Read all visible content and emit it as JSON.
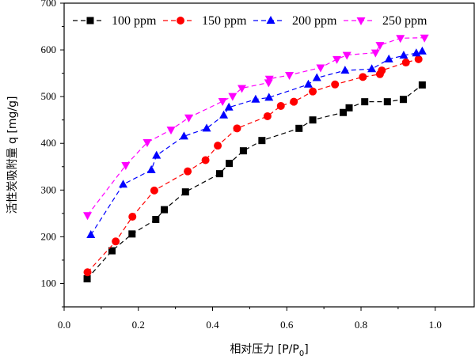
{
  "chart_data": {
    "type": "line",
    "title": "",
    "xlabel": "相对压力 [P/P",
    "xlabel_sub": "0",
    "xlabel_end": "]",
    "ylabel": "活性炭吸附量 q [mg/g]",
    "xlim": [
      0,
      1.105
    ],
    "ylim": [
      50,
      700
    ],
    "xticks": [
      "0.0",
      "0.2",
      "0.4",
      "0.6",
      "0.8",
      "1.0"
    ],
    "xtick_values": [
      0,
      0.2,
      0.4,
      0.6,
      0.8,
      1.0
    ],
    "yticks": [
      "100",
      "200",
      "300",
      "400",
      "500",
      "600",
      "700"
    ],
    "ytick_values": [
      100,
      200,
      300,
      400,
      500,
      600,
      700
    ],
    "grid": false,
    "legend_position": "top",
    "series": [
      {
        "name": "100 ppm",
        "color": "#000000",
        "marker": "square",
        "x": [
          0.062,
          0.129,
          0.183,
          0.247,
          0.27,
          0.327,
          0.419,
          0.445,
          0.483,
          0.533,
          0.633,
          0.67,
          0.752,
          0.768,
          0.81,
          0.871,
          0.914,
          0.965
        ],
        "y": [
          110,
          170,
          206,
          237,
          258,
          296,
          335,
          357,
          384,
          406,
          432,
          450,
          466,
          476,
          489,
          489,
          494,
          525
        ]
      },
      {
        "name": "150 ppm",
        "color": "#ff0000",
        "marker": "circle",
        "x": [
          0.063,
          0.139,
          0.184,
          0.243,
          0.333,
          0.381,
          0.414,
          0.466,
          0.548,
          0.584,
          0.619,
          0.67,
          0.73,
          0.805,
          0.851,
          0.856,
          0.921,
          0.955
        ],
        "y": [
          124,
          190,
          243,
          299,
          340,
          364,
          395,
          432,
          458,
          480,
          489,
          511,
          526,
          542,
          548,
          556,
          573,
          580
        ]
      },
      {
        "name": "200 ppm",
        "color": "#0000ff",
        "marker": "triangle-up",
        "x": [
          0.072,
          0.159,
          0.235,
          0.249,
          0.323,
          0.384,
          0.43,
          0.444,
          0.516,
          0.552,
          0.658,
          0.681,
          0.757,
          0.829,
          0.875,
          0.915,
          0.949,
          0.965
        ],
        "y": [
          204,
          312,
          343,
          374,
          415,
          432,
          460,
          477,
          494,
          498,
          526,
          540,
          556,
          559,
          580,
          588,
          593,
          597
        ]
      },
      {
        "name": "250 ppm",
        "color": "#ff00ff",
        "marker": "triangle-down",
        "x": [
          0.063,
          0.166,
          0.224,
          0.288,
          0.336,
          0.427,
          0.454,
          0.479,
          0.551,
          0.553,
          0.607,
          0.691,
          0.735,
          0.762,
          0.839,
          0.851,
          0.906,
          0.971
        ],
        "y": [
          246,
          353,
          402,
          429,
          455,
          490,
          501,
          518,
          530,
          538,
          546,
          562,
          580,
          589,
          594,
          610,
          625,
          626
        ]
      }
    ]
  }
}
